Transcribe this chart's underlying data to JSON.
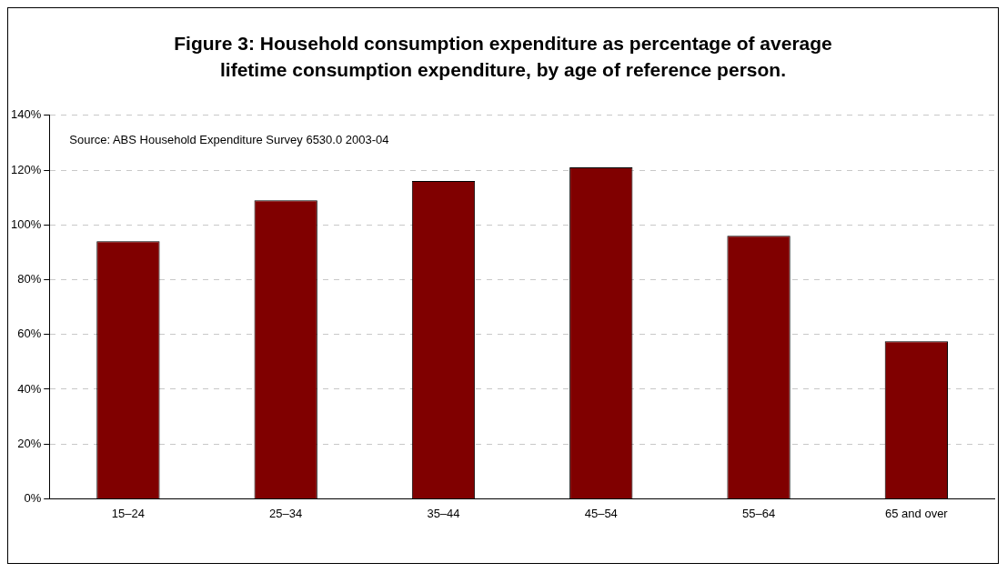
{
  "chart_data": {
    "type": "bar",
    "title": "Figure 3: Household consumption expenditure as percentage of average lifetime consumption expenditure, by age of reference person.",
    "categories": [
      "15–24",
      "25–34",
      "35–44",
      "45–54",
      "55–64",
      "65 and over"
    ],
    "values": [
      94,
      109,
      116,
      121,
      96,
      57.5
    ],
    "color": "#800000",
    "ylim": [
      0,
      140
    ],
    "yticks": [
      {
        "value": 0,
        "label": "0%"
      },
      {
        "value": 20,
        "label": "20%"
      },
      {
        "value": 40,
        "label": "40%"
      },
      {
        "value": 60,
        "label": "60%"
      },
      {
        "value": 80,
        "label": "80%"
      },
      {
        "value": 100,
        "label": "100%"
      },
      {
        "value": 120,
        "label": "120%"
      },
      {
        "value": 140,
        "label": "140%"
      }
    ],
    "grid": "y",
    "legend": false,
    "annotations": [
      "Source: ABS Household Expenditure Survey 6530.0 2003-04"
    ]
  }
}
